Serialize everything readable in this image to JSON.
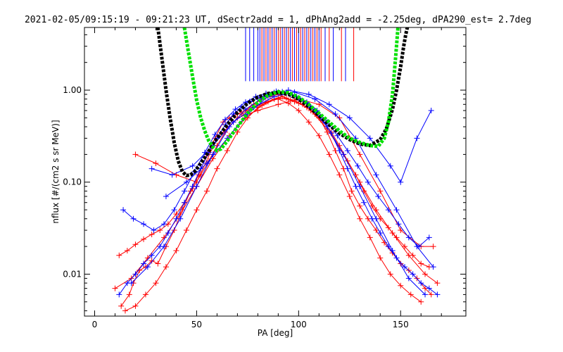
{
  "chart_data": {
    "type": "scatter",
    "title": "2021-02-05/09:15:19 - 09:21:23 UT, dSectr2add = 1, dPhAng2add = -2.25deg, dPA290_est=   2.7deg",
    "xlabel": "PA [deg]",
    "ylabel": "nflux [#/(cm2 s sr MeV)]",
    "xlim": [
      -5,
      182
    ],
    "ylim": [
      0.0035,
      4.8
    ],
    "yscale": "log",
    "xticks": [
      0,
      50,
      100,
      150
    ],
    "xtick_labels": [
      "0",
      "50",
      "100",
      "150"
    ],
    "yticks": [
      0.01,
      0.1,
      1.0
    ],
    "ytick_labels": [
      "0.01",
      "0.10",
      "1.00"
    ],
    "grid": false,
    "legend": "none",
    "colors": {
      "red": "#ff0000",
      "blue": "#0000ff",
      "black": "#000000",
      "green": "#00e000"
    },
    "series": [
      {
        "color": "red",
        "style": "line-plus",
        "x": [
          13,
          17,
          19,
          22,
          25,
          28,
          31,
          35,
          39,
          43,
          47,
          51,
          55,
          59,
          63,
          66,
          70,
          74,
          78,
          82,
          86,
          90,
          94,
          98,
          102,
          106,
          110,
          114,
          118,
          122,
          126,
          130,
          134,
          138,
          142,
          146,
          150,
          154,
          158,
          162,
          165
        ],
        "y": [
          0.0045,
          0.006,
          0.008,
          0.011,
          0.012,
          0.014,
          0.013,
          0.02,
          0.03,
          0.05,
          0.08,
          0.12,
          0.2,
          0.3,
          0.45,
          0.5,
          0.55,
          0.6,
          0.7,
          0.8,
          0.85,
          0.9,
          0.82,
          0.75,
          0.7,
          0.6,
          0.5,
          0.35,
          0.22,
          0.14,
          0.08,
          0.055,
          0.04,
          0.03,
          0.022,
          0.017,
          0.013,
          0.011,
          0.009,
          0.007,
          0.006
        ]
      },
      {
        "color": "red",
        "style": "line-plus",
        "x": [
          12,
          16,
          20,
          24,
          28,
          32,
          36,
          40,
          44,
          48,
          52,
          56,
          60,
          64,
          68,
          72,
          76,
          80,
          84,
          88,
          92,
          96,
          100,
          104,
          108,
          112,
          116,
          120,
          124,
          128,
          132,
          136,
          140,
          144,
          148,
          152,
          156,
          160,
          164
        ],
        "y": [
          0.016,
          0.018,
          0.021,
          0.024,
          0.027,
          0.03,
          0.035,
          0.045,
          0.06,
          0.085,
          0.12,
          0.17,
          0.25,
          0.35,
          0.45,
          0.55,
          0.62,
          0.68,
          0.74,
          0.8,
          0.85,
          0.78,
          0.72,
          0.65,
          0.55,
          0.45,
          0.35,
          0.25,
          0.17,
          0.12,
          0.08,
          0.055,
          0.04,
          0.032,
          0.025,
          0.02,
          0.016,
          0.013,
          0.012
        ]
      },
      {
        "color": "red",
        "style": "line-plus",
        "x": [
          15,
          20,
          25,
          30,
          35,
          40,
          45,
          50,
          55,
          60,
          65,
          70,
          75,
          80,
          85,
          90,
          95,
          100,
          105,
          110,
          115,
          120,
          125,
          130,
          135,
          140,
          145,
          150,
          155,
          160
        ],
        "y": [
          0.004,
          0.0045,
          0.006,
          0.008,
          0.012,
          0.018,
          0.03,
          0.05,
          0.08,
          0.14,
          0.22,
          0.35,
          0.5,
          0.65,
          0.75,
          0.8,
          0.72,
          0.6,
          0.45,
          0.32,
          0.2,
          0.12,
          0.07,
          0.04,
          0.025,
          0.015,
          0.01,
          0.0075,
          0.006,
          0.005
        ]
      },
      {
        "color": "red",
        "style": "line-plus",
        "x": [
          10,
          18,
          26,
          34,
          42,
          50,
          58,
          66,
          74,
          82,
          90,
          98,
          106,
          114,
          122,
          130,
          138,
          146,
          154,
          162,
          168
        ],
        "y": [
          0.007,
          0.009,
          0.015,
          0.025,
          0.045,
          0.09,
          0.18,
          0.32,
          0.5,
          0.68,
          0.82,
          0.78,
          0.6,
          0.38,
          0.2,
          0.1,
          0.05,
          0.028,
          0.016,
          0.01,
          0.008
        ]
      },
      {
        "color": "red",
        "style": "line-plus",
        "x": [
          20,
          30,
          40,
          50,
          60,
          70,
          80,
          90,
          100,
          110,
          120,
          130,
          140,
          150,
          160,
          166
        ],
        "y": [
          0.2,
          0.16,
          0.12,
          0.1,
          0.3,
          0.5,
          0.6,
          0.7,
          0.8,
          0.7,
          0.5,
          0.2,
          0.08,
          0.03,
          0.02,
          0.02
        ]
      },
      {
        "color": "blue",
        "style": "line-plus",
        "x": [
          12,
          16,
          20,
          24,
          28,
          32,
          36,
          40,
          44,
          48,
          52,
          56,
          60,
          64,
          68,
          72,
          76,
          80,
          84,
          88,
          92,
          96,
          100,
          104,
          108,
          112,
          116,
          120,
          124,
          128,
          132,
          136,
          140,
          144,
          148,
          152,
          156,
          160,
          164,
          168
        ],
        "y": [
          0.006,
          0.008,
          0.01,
          0.013,
          0.016,
          0.02,
          0.028,
          0.04,
          0.06,
          0.09,
          0.14,
          0.21,
          0.3,
          0.42,
          0.55,
          0.66,
          0.75,
          0.82,
          0.88,
          0.94,
          0.96,
          0.9,
          0.82,
          0.72,
          0.6,
          0.47,
          0.34,
          0.22,
          0.14,
          0.09,
          0.06,
          0.04,
          0.028,
          0.02,
          0.015,
          0.012,
          0.01,
          0.008,
          0.007,
          0.006
        ]
      },
      {
        "color": "blue",
        "style": "line-plus",
        "x": [
          14,
          19,
          24,
          29,
          34,
          39,
          44,
          49,
          54,
          59,
          64,
          69,
          74,
          79,
          84,
          89,
          94,
          99,
          104,
          109,
          114,
          119,
          124,
          129,
          134,
          139,
          144,
          149,
          154,
          159,
          164
        ],
        "y": [
          0.05,
          0.04,
          0.035,
          0.03,
          0.035,
          0.05,
          0.08,
          0.13,
          0.21,
          0.33,
          0.48,
          0.62,
          0.74,
          0.85,
          0.92,
          0.97,
          0.93,
          0.85,
          0.74,
          0.6,
          0.45,
          0.32,
          0.22,
          0.15,
          0.1,
          0.07,
          0.05,
          0.035,
          0.025,
          0.02,
          0.025
        ]
      },
      {
        "color": "blue",
        "style": "line-plus",
        "x": [
          18,
          26,
          34,
          42,
          50,
          58,
          66,
          74,
          82,
          90,
          98,
          106,
          114,
          122,
          130,
          138,
          146,
          154,
          162
        ],
        "y": [
          0.008,
          0.012,
          0.02,
          0.04,
          0.09,
          0.2,
          0.4,
          0.62,
          0.82,
          0.95,
          0.88,
          0.65,
          0.4,
          0.2,
          0.09,
          0.04,
          0.018,
          0.009,
          0.006
        ]
      },
      {
        "color": "blue",
        "style": "line-plus",
        "x": [
          35,
          45,
          55,
          65,
          75,
          85,
          95,
          105,
          115,
          125,
          135,
          145,
          150,
          158,
          165
        ],
        "y": [
          0.07,
          0.1,
          0.16,
          0.3,
          0.55,
          0.85,
          1.0,
          0.9,
          0.7,
          0.5,
          0.3,
          0.15,
          0.1,
          0.3,
          0.6
        ]
      },
      {
        "color": "blue",
        "style": "line-plus",
        "x": [
          28,
          38,
          48,
          58,
          68,
          78,
          88,
          98,
          108,
          118,
          128,
          138,
          148,
          158,
          166
        ],
        "y": [
          0.14,
          0.12,
          0.15,
          0.25,
          0.45,
          0.65,
          0.85,
          0.95,
          0.8,
          0.55,
          0.3,
          0.12,
          0.05,
          0.02,
          0.012
        ]
      },
      {
        "color": "black",
        "style": "thick-dashed",
        "x": [
          31,
          33,
          35,
          37,
          39,
          41,
          43,
          45,
          47,
          49,
          52,
          55,
          58,
          61,
          65,
          70,
          75,
          80,
          85,
          90,
          95,
          100,
          105,
          110,
          115,
          120,
          125,
          130,
          135,
          140,
          143,
          146,
          148,
          150,
          151.5,
          152.5,
          153.3
        ],
        "y": [
          4.8,
          2.2,
          1.0,
          0.5,
          0.27,
          0.17,
          0.13,
          0.118,
          0.12,
          0.13,
          0.16,
          0.2,
          0.26,
          0.32,
          0.42,
          0.57,
          0.72,
          0.84,
          0.92,
          0.94,
          0.9,
          0.8,
          0.66,
          0.53,
          0.42,
          0.34,
          0.29,
          0.26,
          0.25,
          0.29,
          0.38,
          0.62,
          1.0,
          1.8,
          3.0,
          4.0,
          4.8
        ]
      },
      {
        "color": "green",
        "style": "thick-dashed",
        "x": [
          44,
          45.5,
          47,
          48.5,
          50,
          52,
          54,
          56,
          58,
          60,
          62,
          65,
          70,
          75,
          80,
          85,
          90,
          95,
          100,
          105,
          110,
          115,
          120,
          125,
          130,
          135,
          139,
          142,
          144,
          146,
          147.5,
          148.7
        ],
        "y": [
          4.8,
          3.0,
          1.9,
          1.2,
          0.78,
          0.5,
          0.36,
          0.28,
          0.24,
          0.22,
          0.23,
          0.28,
          0.4,
          0.56,
          0.74,
          0.88,
          0.96,
          0.94,
          0.84,
          0.7,
          0.56,
          0.45,
          0.36,
          0.3,
          0.27,
          0.25,
          0.245,
          0.3,
          0.45,
          0.9,
          2.2,
          4.8
        ]
      }
    ],
    "vlines": {
      "base": 1.25,
      "top": 4.8,
      "red_x": [
        82,
        84,
        86,
        88,
        90,
        91,
        93,
        95,
        97,
        99,
        101,
        103,
        105,
        107,
        109,
        111,
        115,
        121,
        127
      ],
      "blue_x": [
        74,
        76,
        78,
        80,
        81,
        83,
        85,
        87,
        89,
        92,
        94,
        96,
        98,
        100,
        102,
        104,
        106,
        108,
        110,
        113,
        117,
        123
      ]
    }
  }
}
